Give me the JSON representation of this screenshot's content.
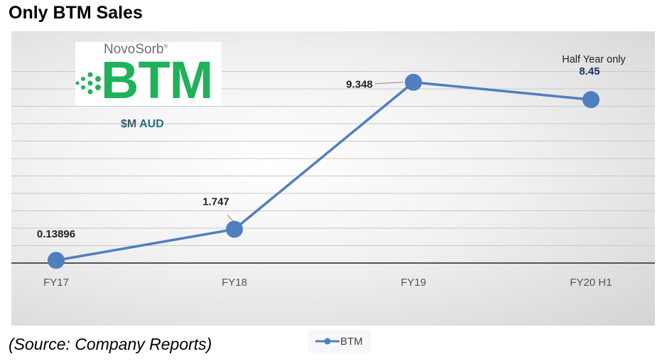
{
  "title": "Only BTM Sales",
  "logo": {
    "brand": "NovoSorb",
    "mark": "®",
    "product": "BTM"
  },
  "unit_label": {
    "currency": "$M",
    "code": "AUD"
  },
  "source_note": "(Source: Company Reports)",
  "colors": {
    "line": "#4f7fbf",
    "brand_green": "#1fb25a",
    "annotation_value": "#1f2f6e"
  },
  "chart_data": {
    "type": "line",
    "categories": [
      "FY17",
      "FY18",
      "FY19",
      "FY20 H1"
    ],
    "series": [
      {
        "name": "BTM",
        "values": [
          0.13896,
          1.747,
          9.348,
          8.45
        ]
      }
    ],
    "data_labels": [
      "0.13896",
      "1.747",
      "9.348",
      "8.45"
    ],
    "annotations": [
      {
        "category": "FY20 H1",
        "text": "Half Year only"
      }
    ],
    "ylim": [
      0,
      10
    ],
    "grid": true,
    "legend": "bottom",
    "xlabel": "",
    "ylabel": "",
    "title": ""
  }
}
